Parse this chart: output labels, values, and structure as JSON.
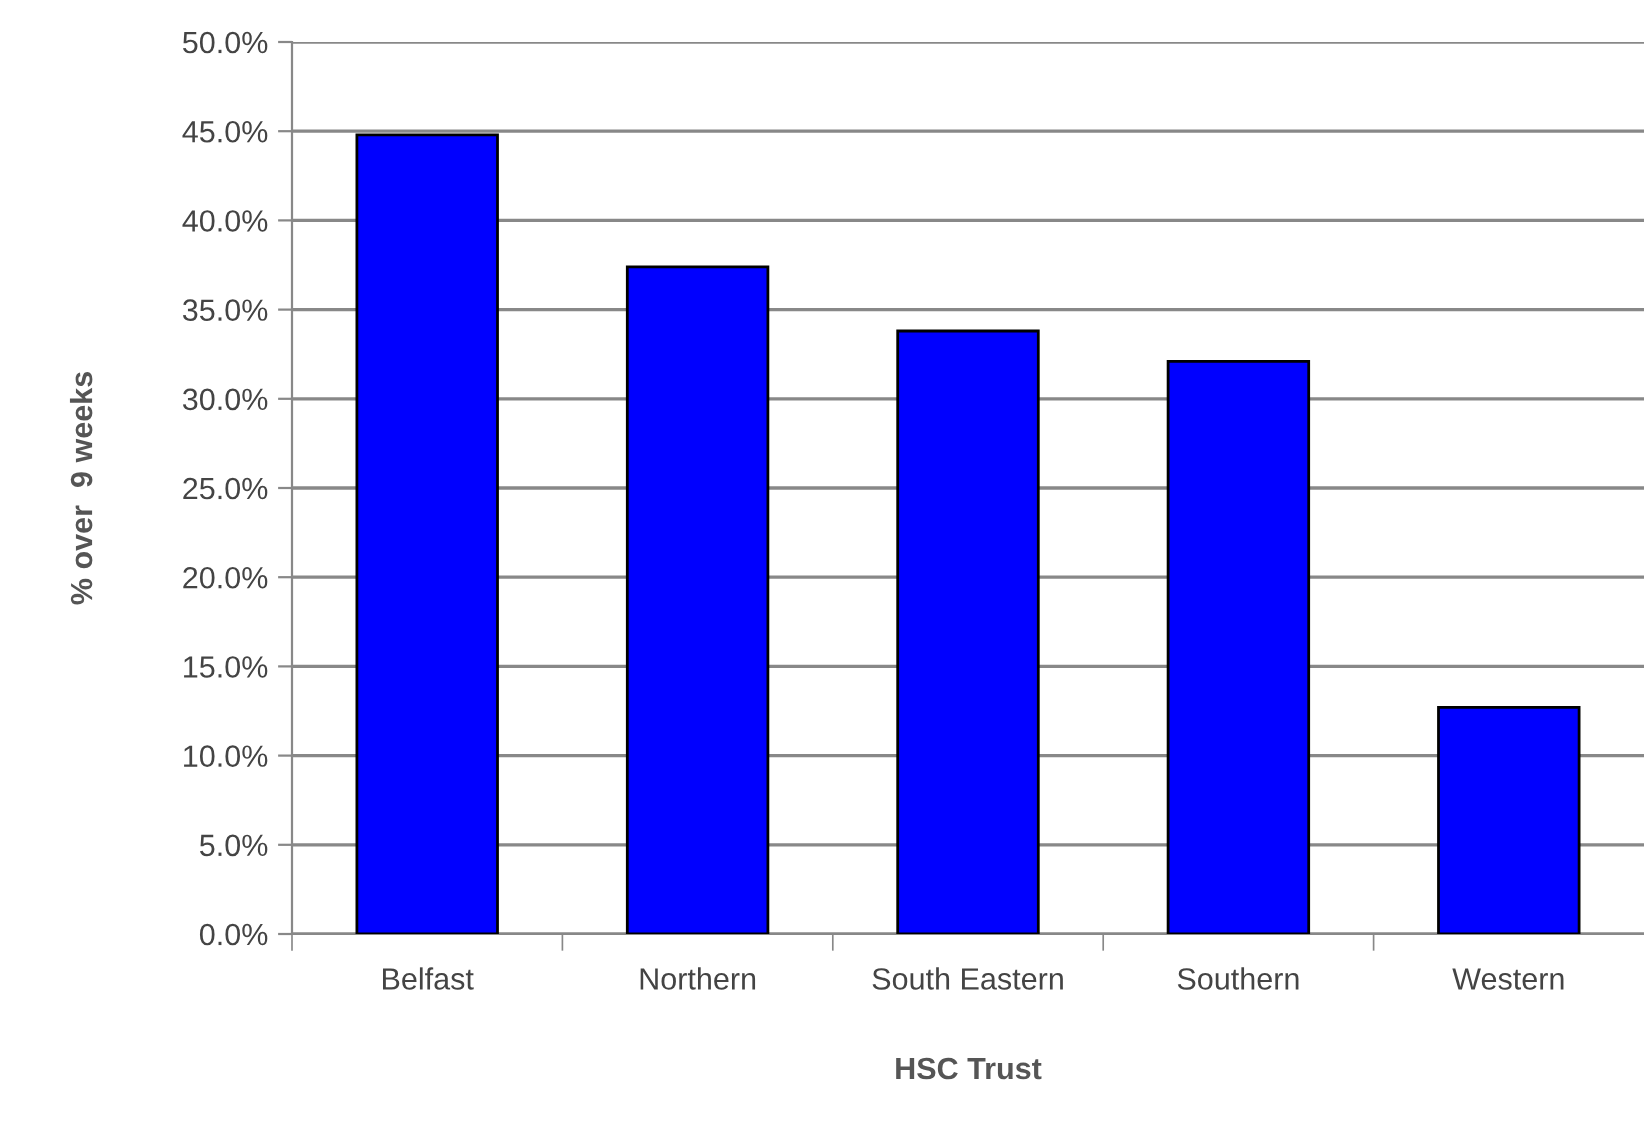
{
  "chart_data": {
    "type": "bar",
    "xlabel": "HSC Trust",
    "ylabel": "% over  9 weeks",
    "categories": [
      "Belfast",
      "Northern",
      "South Eastern",
      "Southern",
      "Western"
    ],
    "values": [
      44.8,
      37.4,
      33.8,
      32.1,
      12.7
    ],
    "color": "#0000ff",
    "ylim": [
      0,
      50
    ],
    "yticks": [
      {
        "value": 0,
        "label": "0.0%"
      },
      {
        "value": 5,
        "label": "5.0%"
      },
      {
        "value": 10,
        "label": "10.0%"
      },
      {
        "value": 15,
        "label": "15.0%"
      },
      {
        "value": 20,
        "label": "20.0%"
      },
      {
        "value": 25,
        "label": "25.0%"
      },
      {
        "value": 30,
        "label": "30.0%"
      },
      {
        "value": 35,
        "label": "35.0%"
      },
      {
        "value": 40,
        "label": "40.0%"
      },
      {
        "value": 45,
        "label": "45.0%"
      },
      {
        "value": 50,
        "label": "50.0%"
      }
    ],
    "grid": "y",
    "legend": false
  }
}
